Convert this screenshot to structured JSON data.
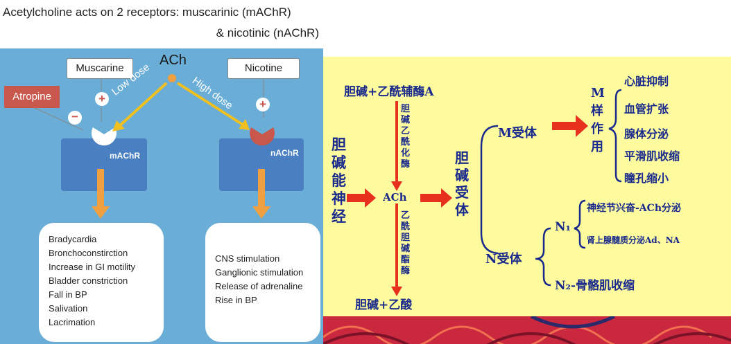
{
  "left_diagram": {
    "title_line1": "Acetylcholine acts on 2 receptors: muscarinic (mAChR)",
    "title_line2": "& nicotinic (nAChR)",
    "ach_label": "ACh",
    "muscarine_label": "Muscarine",
    "nicotine_label": "Nicotine",
    "atropine_label": "Atropine",
    "low_dose_label": "Low dose",
    "high_dose_label": "High dose",
    "plus_symbol": "+",
    "minus_symbol": "−",
    "machr_label": "mAChR",
    "nachr_label": "nAChR",
    "muscarinic_effects": [
      "Bradycardia",
      "Bronchoconstirction",
      "Increase in GI motility",
      "Bladder constriction",
      "Fall in BP",
      "Salivation",
      "Lacrimation"
    ],
    "nicotinic_effects": [
      "CNS stimulation",
      "Ganglionic stimulation",
      "Release of adrenaline",
      "Rise in BP"
    ]
  },
  "right_diagram": {
    "synthesis_top": "胆碱+乙酰辅酶A",
    "synthesis_enzyme": "胆碱乙酰化酶",
    "hydrolysis_enzyme": "乙酰胆碱酯酶",
    "hydrolysis_bottom": "胆碱+乙酸",
    "nerve_label": "胆碱能神经",
    "ach": "ACh",
    "receptor_label": "胆碱受体",
    "m_receptor": "M受体",
    "m_effects_label": "M样作用",
    "m_effects": [
      "心脏抑制",
      "血管扩张",
      "腺体分泌",
      "平滑肌收缩",
      "瞳孔缩小"
    ],
    "n_receptor": "N受体",
    "n1_label": "N₁",
    "n1_effects": [
      "神经节兴奋-ACh分泌",
      "肾上腺髓质分泌Ad、NA"
    ],
    "n2_effect": "N₂-骨骼肌收缩"
  },
  "colors": {
    "left_bg": "#6aaed7",
    "receptor": "#4a7fc1",
    "arrow_orange": "#f0a040",
    "atropine": "#c8574c",
    "right_bg": "#fdfb9e",
    "right_text": "#1a2a8c",
    "red_arrow": "#e8301e"
  }
}
